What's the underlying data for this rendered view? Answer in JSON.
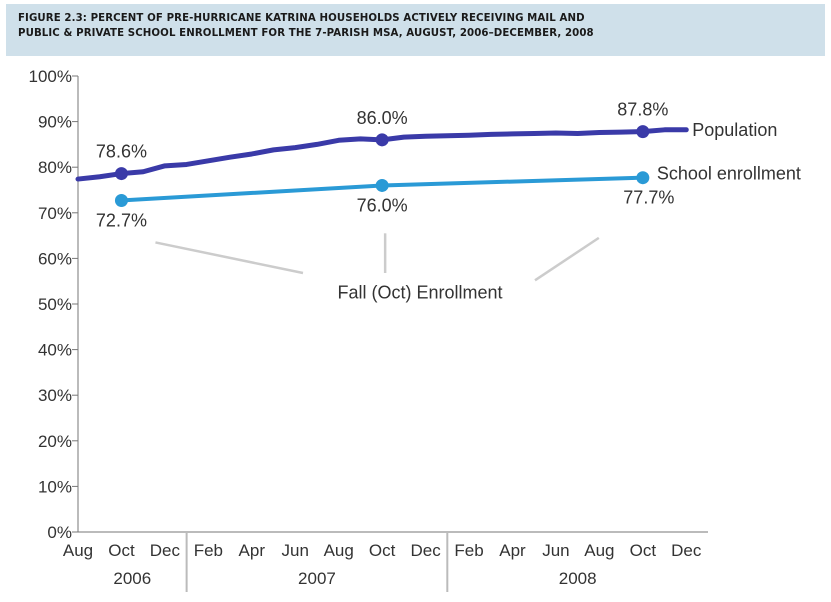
{
  "header": {
    "line1": "FIGURE 2.3: PERCENT OF PRE-HURRICANE KATRINA HOUSEHOLDS ACTIVELY RECEIVING MAIL AND",
    "line2": "PUBLIC & PRIVATE SCHOOL ENROLLMENT FOR THE 7-PARISH MSA, AUGUST, 2006–DECEMBER, 2008"
  },
  "colors": {
    "population": "#3a3aa8",
    "school": "#2a9ad6",
    "header_bg": "#cfe0ea",
    "grid": "#d8d8d8",
    "axis": "#555555"
  },
  "chart_data": {
    "type": "line",
    "title": "FIGURE 2.3: PERCENT OF PRE-HURRICANE KATRINA HOUSEHOLDS ACTIVELY RECEIVING MAIL AND PUBLIC & PRIVATE SCHOOL ENROLLMENT FOR THE 7-PARISH MSA, AUGUST, 2006–DECEMBER, 2008",
    "y_ticks": [
      "0%",
      "10%",
      "20%",
      "30%",
      "40%",
      "50%",
      "60%",
      "70%",
      "80%",
      "90%",
      "100%"
    ],
    "ylim": [
      0,
      100
    ],
    "x_month_labels": [
      "Aug",
      "Oct",
      "Dec",
      "Feb",
      "Apr",
      "Jun",
      "Aug",
      "Oct",
      "Dec",
      "Feb",
      "Apr",
      "Jun",
      "Aug",
      "Oct",
      "Dec"
    ],
    "x_month_index": [
      0,
      2,
      4,
      6,
      8,
      10,
      12,
      14,
      16,
      18,
      20,
      22,
      24,
      26,
      28
    ],
    "x_years": [
      {
        "label": "2006",
        "start": 0,
        "end": 5
      },
      {
        "label": "2007",
        "start": 5,
        "end": 17
      },
      {
        "label": "2008",
        "start": 17,
        "end": 29
      }
    ],
    "x_range": [
      0,
      29
    ],
    "series": [
      {
        "name": "Population",
        "x": [
          0,
          1,
          2,
          3,
          4,
          5,
          6,
          7,
          8,
          9,
          10,
          11,
          12,
          13,
          14,
          15,
          16,
          17,
          18,
          19,
          20,
          21,
          22,
          23,
          24,
          25,
          26,
          27,
          28
        ],
        "y": [
          77.4,
          77.9,
          78.6,
          79.0,
          80.3,
          80.6,
          81.4,
          82.2,
          82.9,
          83.8,
          84.3,
          85.0,
          85.9,
          86.2,
          86.0,
          86.6,
          86.8,
          86.9,
          87.0,
          87.2,
          87.3,
          87.4,
          87.5,
          87.4,
          87.6,
          87.7,
          87.8,
          88.2,
          88.2
        ],
        "markers": [
          {
            "x": 2,
            "y": 78.6,
            "label": "78.6%"
          },
          {
            "x": 14,
            "y": 86.0,
            "label": "86.0%"
          },
          {
            "x": 26,
            "y": 87.8,
            "label": "87.8%"
          }
        ]
      },
      {
        "name": "School enrollment",
        "x": [
          2,
          14,
          26
        ],
        "y": [
          72.7,
          76.0,
          77.7
        ],
        "markers": [
          {
            "x": 2,
            "y": 72.7,
            "label": "72.7%"
          },
          {
            "x": 14,
            "y": 76.0,
            "label": "76.0%"
          },
          {
            "x": 26,
            "y": 77.7,
            "label": "77.7%"
          }
        ]
      }
    ],
    "annotation": "Fall (Oct) Enrollment"
  }
}
